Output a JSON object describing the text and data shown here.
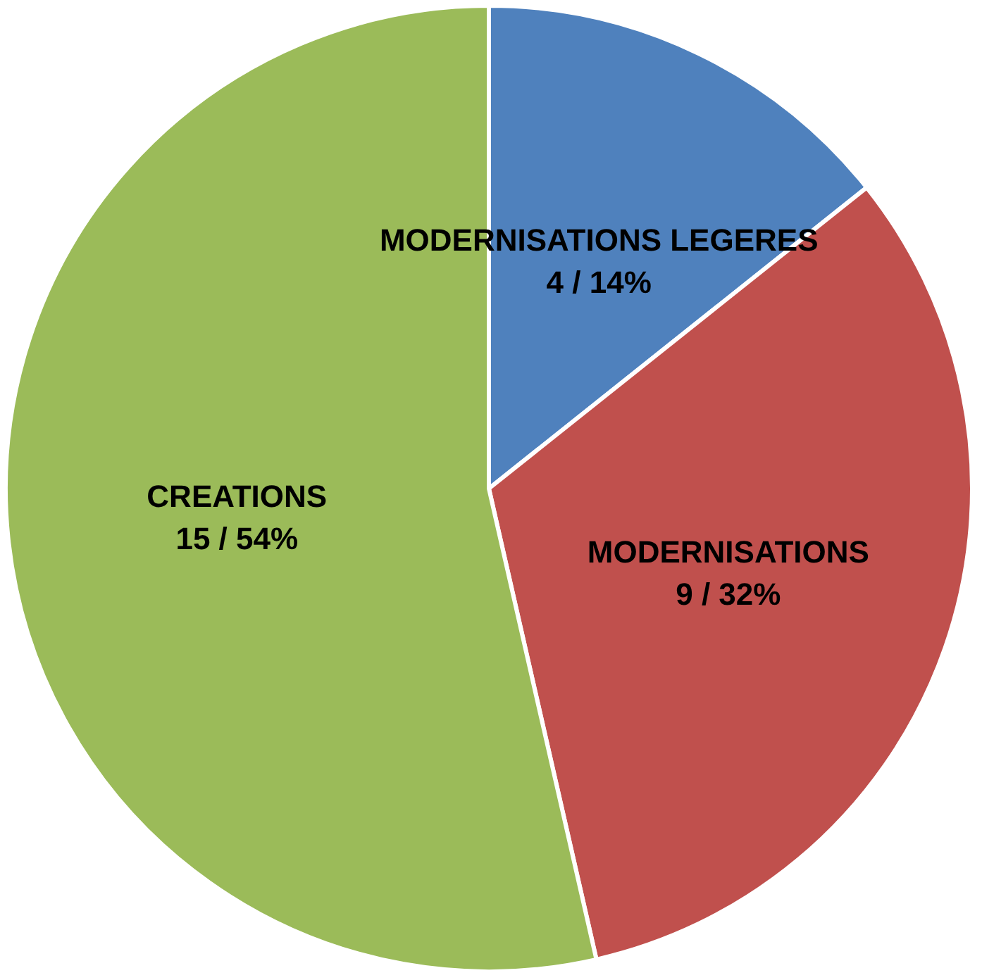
{
  "chart_data": {
    "type": "pie",
    "categories": [
      "MODERNISATIONS LEGERES",
      "MODERNISATIONS",
      "CREATIONS"
    ],
    "values": [
      4,
      9,
      15
    ],
    "value_labels": [
      "4 / 14%",
      "9 / 32%",
      "15 / 54%"
    ],
    "colors": [
      "#4f81bd",
      "#c0504d",
      "#9bbb59"
    ]
  }
}
